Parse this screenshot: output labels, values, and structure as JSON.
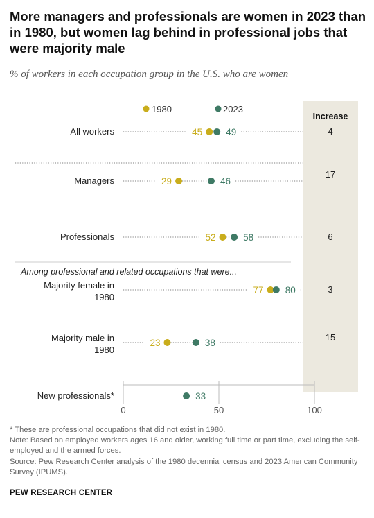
{
  "title": "More managers and professionals are women in 2023 than in 1980, but women lag behind in professional jobs that were majority male",
  "subtitle": "% of workers in each occupation group in the U.S. who are women",
  "colors": {
    "y1980": "#c9ad1c",
    "y2023": "#3f7a65",
    "increase_bg": "#ece9df",
    "dots": "#999999"
  },
  "chart_data": {
    "type": "dot-plot",
    "xlim": [
      0,
      100
    ],
    "x_ticks": [
      "0",
      "50",
      "100"
    ],
    "legend": [
      "1980",
      "2023"
    ],
    "increase_header": "Increase",
    "section_label": "Among professional and related occupations that were...",
    "rows": [
      {
        "label": [
          "All workers"
        ],
        "v1980": 45,
        "v2023": 49,
        "increase": "4"
      },
      {
        "label": [
          "Managers"
        ],
        "v1980": 29,
        "v2023": 46,
        "increase": "17"
      },
      {
        "label": [
          "Professionals"
        ],
        "v1980": 52,
        "v2023": 58,
        "increase": "6"
      },
      {
        "label": [
          "Majority female in",
          "1980"
        ],
        "v1980": 77,
        "v2023": 80,
        "increase": "3"
      },
      {
        "label": [
          "Majority male in",
          "1980"
        ],
        "v1980": 23,
        "v2023": 38,
        "increase": "15"
      },
      {
        "label": [
          "New professionals*"
        ],
        "v1980": null,
        "v2023": 33,
        "increase": ""
      }
    ]
  },
  "notes": [
    "* These are professional occupations that did not exist in 1980.",
    "Note: Based on employed workers ages 16 and older, working full time or part time, excluding the self-employed and the armed forces.",
    "Source: Pew Research Center analysis of the 1980 decennial census and 2023 American Community Survey (IPUMS)."
  ],
  "brand": "PEW RESEARCH CENTER"
}
